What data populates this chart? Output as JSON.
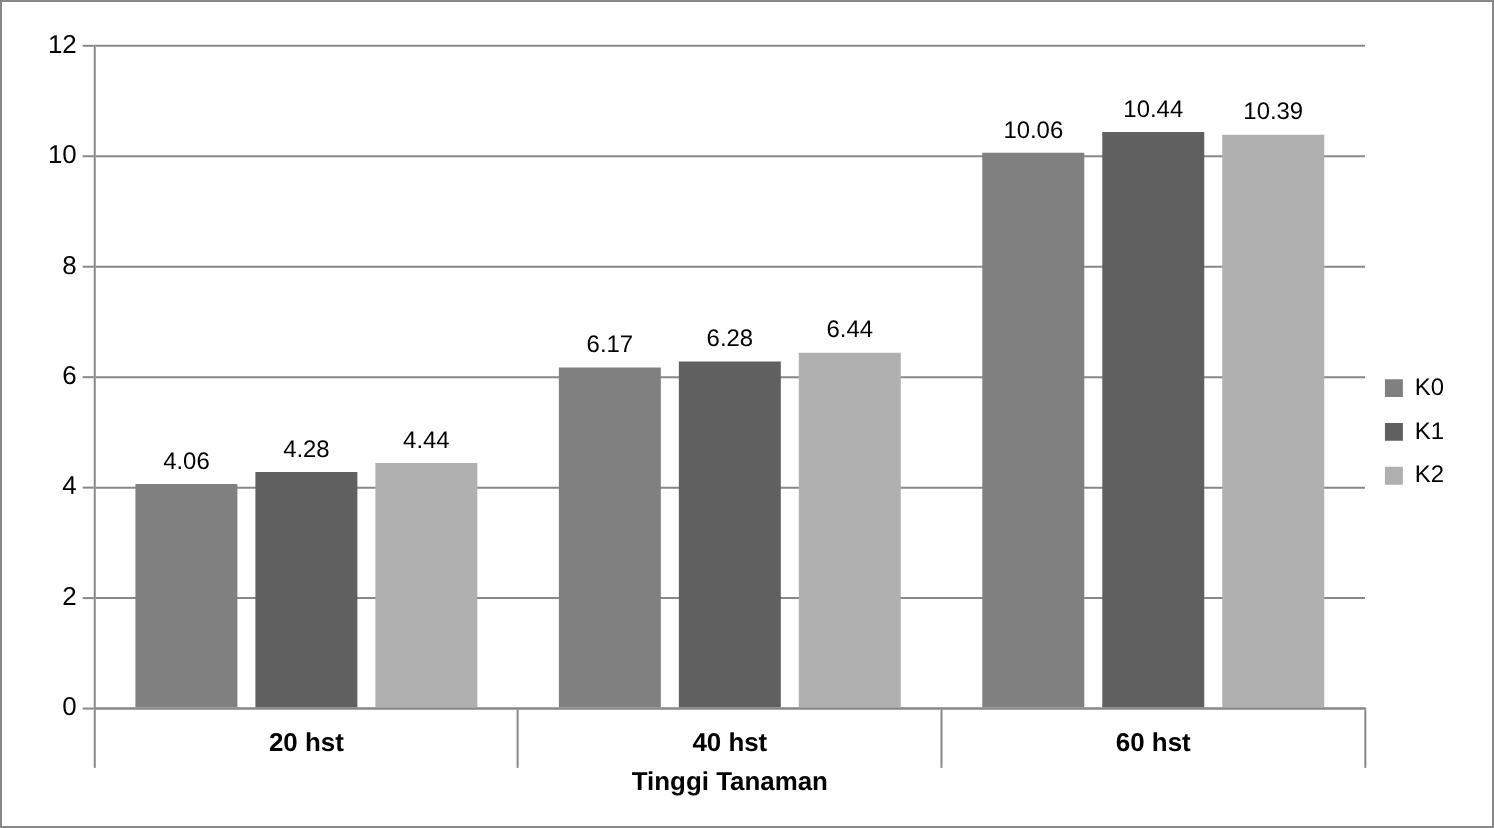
{
  "chart_data": {
    "type": "bar",
    "xlabel": "Tinggi Tanaman",
    "categories": [
      "20 hst",
      "40 hst",
      "60 hst"
    ],
    "series": [
      {
        "name": "K0",
        "color": "#808080",
        "values": [
          4.06,
          6.17,
          10.06
        ]
      },
      {
        "name": "K1",
        "color": "#606060",
        "values": [
          4.28,
          6.28,
          10.44
        ]
      },
      {
        "name": "K2",
        "color": "#b0b0b0",
        "values": [
          4.44,
          6.44,
          10.39
        ]
      }
    ],
    "ylim": [
      0,
      12
    ],
    "yticks": [
      0,
      2,
      4,
      6,
      8,
      10,
      12
    ],
    "grid": "y",
    "legend": "right",
    "data_labels": true
  }
}
